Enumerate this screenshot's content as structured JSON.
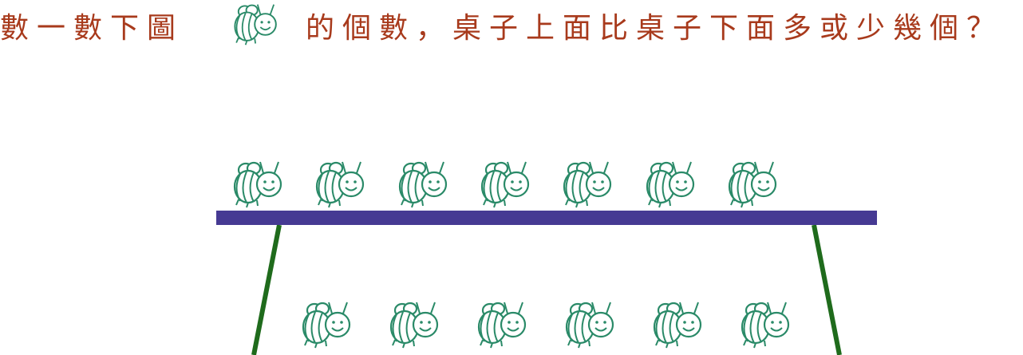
{
  "question": {
    "part1": "數一數下圖",
    "icon": "bee-icon",
    "part2": "的個數，桌子上面比桌子下面多或少幾個？"
  },
  "scene": {
    "table_color": "#463a93",
    "leg_color": "#1f6b1c",
    "bee_color": "#2a8a68",
    "text_color": "#a83a1c",
    "bees_on_table": 7,
    "bees_under_table": 6
  }
}
